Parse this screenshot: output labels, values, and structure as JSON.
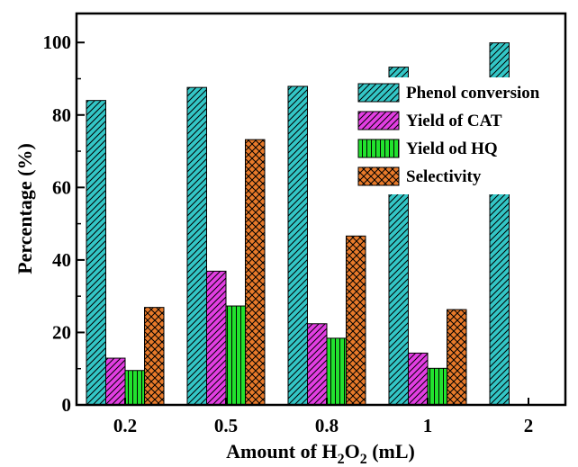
{
  "chart_data": {
    "type": "bar",
    "categories": [
      "0.2",
      "0.5",
      "0.8",
      "1",
      "2"
    ],
    "series": [
      {
        "name": "Phenol conversion",
        "values": [
          84.0,
          87.6,
          87.9,
          93.2,
          99.9
        ],
        "color": "#33c6c6",
        "pattern": "diagonal"
      },
      {
        "name": "Yield of CAT",
        "values": [
          12.9,
          36.9,
          22.4,
          14.3,
          0
        ],
        "color": "#e23ee2",
        "pattern": "diagonal"
      },
      {
        "name": "Yield od HQ",
        "values": [
          9.5,
          27.3,
          18.4,
          10.1,
          0
        ],
        "color": "#22e22e",
        "pattern": "vertical"
      },
      {
        "name": "Selectivity",
        "values": [
          26.9,
          73.2,
          46.6,
          26.3,
          0
        ],
        "color": "#e87a2a",
        "pattern": "crosshatch"
      }
    ],
    "xlabel_parts": [
      "Amount of H",
      "2",
      "O",
      "2",
      " (mL)"
    ],
    "ylabel": "Percentage (%)",
    "ylim": [
      0,
      108
    ],
    "yticks": [
      0,
      20,
      40,
      60,
      80,
      100
    ],
    "legend_position": "top-right",
    "grid": false
  }
}
